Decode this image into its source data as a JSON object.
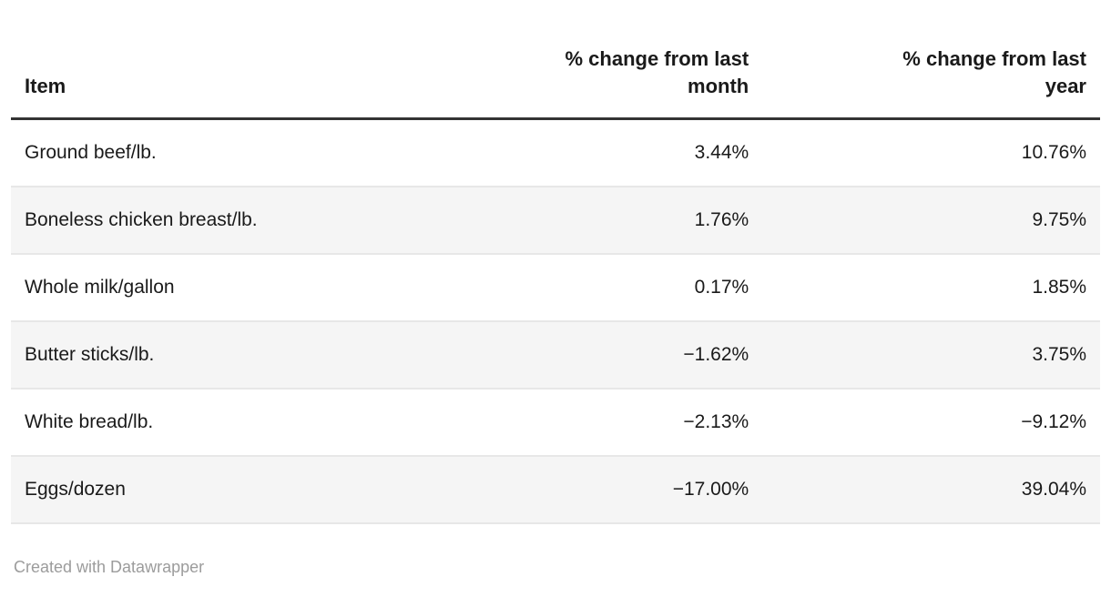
{
  "table": {
    "columns": [
      {
        "label": "Item",
        "align": "left"
      },
      {
        "label": "% change from last\nmonth",
        "align": "right"
      },
      {
        "label": "% change from last\nyear",
        "align": "right"
      }
    ],
    "rows": [
      {
        "item": "Ground beef/lb.",
        "month": "3.44%",
        "year": "10.76%"
      },
      {
        "item": "Boneless chicken breast/lb.",
        "month": "1.76%",
        "year": "9.75%"
      },
      {
        "item": "Whole milk/gallon",
        "month": "0.17%",
        "year": "1.85%"
      },
      {
        "item": "Butter sticks/lb.",
        "month": "−1.62%",
        "year": "3.75%"
      },
      {
        "item": "White bread/lb.",
        "month": "−2.13%",
        "year": "−9.12%"
      },
      {
        "item": "Eggs/dozen",
        "month": "−17.00%",
        "year": "39.04%"
      }
    ]
  },
  "footer": {
    "credit": "Created with Datawrapper"
  },
  "theme": {
    "text": "#1a1a1a",
    "muted_text": "#9c9c9c",
    "header_rule": "#333333",
    "row_stripe": "#f5f5f5",
    "row_divider": "#e7e7e7"
  },
  "chart_data": {
    "type": "table",
    "title": "",
    "columns": [
      "Item",
      "% change from last month",
      "% change from last year"
    ],
    "rows": [
      [
        "Ground beef/lb.",
        3.44,
        10.76
      ],
      [
        "Boneless chicken breast/lb.",
        1.76,
        9.75
      ],
      [
        "Whole milk/gallon",
        0.17,
        1.85
      ],
      [
        "Butter sticks/lb.",
        -1.62,
        3.75
      ],
      [
        "White bread/lb.",
        -2.13,
        -9.12
      ],
      [
        "Eggs/dozen",
        -17.0,
        39.04
      ]
    ],
    "units": "percent",
    "layout_hints": {
      "numeric_columns_right_aligned": true,
      "zebra_stripes_on_even_rows": true,
      "header_rule": "3px dark solid",
      "credit_line": "Created with Datawrapper"
    }
  }
}
